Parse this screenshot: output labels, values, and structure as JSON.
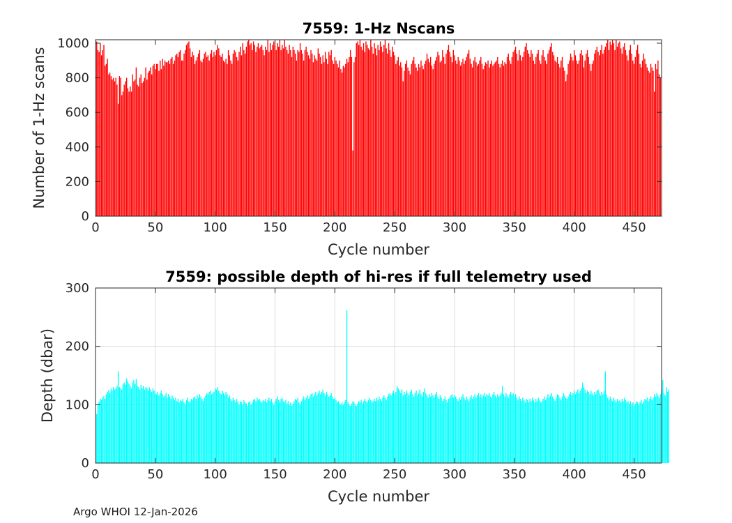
{
  "footer": "Argo WHOI 12-Jan-2026",
  "chart_data": [
    {
      "type": "bar",
      "title": "7559: 1-Hz Nscans",
      "xlabel": "Cycle number",
      "ylabel": "Number of 1-Hz scans",
      "xlim": [
        0,
        473
      ],
      "ylim": [
        0,
        1020
      ],
      "xticks": [
        0,
        50,
        100,
        150,
        200,
        250,
        300,
        350,
        400,
        450
      ],
      "yticks": [
        0,
        200,
        400,
        600,
        800,
        1000
      ],
      "grid": false,
      "color": "#ff0000",
      "series": [
        {
          "x_range": [
            1,
            473
          ],
          "values": [
            1010,
            960,
            950,
            1000,
            930,
            960,
            990,
            870,
            880,
            910,
            820,
            830,
            810,
            790,
            800,
            780,
            800,
            760,
            650,
            810,
            800,
            700,
            720,
            760,
            780,
            800,
            740,
            720,
            750,
            720,
            820,
            780,
            790,
            860,
            760,
            750,
            800,
            820,
            770,
            780,
            800,
            860,
            790,
            830,
            840,
            860,
            820,
            870,
            880,
            850,
            880,
            880,
            840,
            900,
            850,
            910,
            870,
            900,
            890,
            890,
            900,
            880,
            910,
            920,
            880,
            900,
            930,
            940,
            920,
            950,
            960,
            900,
            900,
            940,
            960,
            990,
            1000,
            1010,
            970,
            920,
            950,
            930,
            880,
            900,
            920,
            940,
            960,
            900,
            890,
            910,
            940,
            950,
            920,
            930,
            900,
            940,
            960,
            920,
            950,
            930,
            960,
            990,
            970,
            930,
            920,
            940,
            900,
            890,
            910,
            880,
            960,
            930,
            900,
            880,
            940,
            960,
            950,
            920,
            900,
            950,
            980,
            930,
            1000,
            960,
            940,
            980,
            1010,
            1020,
            990,
            1000,
            960,
            1010,
            990,
            950,
            980,
            1000,
            970,
            980,
            990,
            960,
            930,
            980,
            960,
            1020,
            950,
            1000,
            960,
            990,
            1010,
            990,
            960,
            1000,
            980,
            1020,
            960,
            990,
            970,
            1020,
            980,
            960,
            940,
            990,
            960,
            920,
            980,
            960,
            940,
            900,
            960,
            950,
            1000,
            960,
            940,
            900,
            960,
            980,
            950,
            930,
            910,
            960,
            940,
            890,
            930,
            910,
            900,
            970,
            940,
            920,
            880,
            930,
            890,
            950,
            910,
            880,
            950,
            930,
            960,
            900,
            880,
            920,
            900,
            880,
            860,
            900,
            850,
            830,
            870,
            860,
            880,
            910,
            890,
            920,
            960,
            920,
            380,
            890,
            920,
            1000,
            1010,
            990,
            1020,
            980,
            960,
            1000,
            950,
            1010,
            990,
            970,
            960,
            1020,
            980,
            940,
            1000,
            970,
            930,
            990,
            960,
            1010,
            980,
            950,
            990,
            1020,
            970,
            940,
            1000,
            960,
            920,
            980,
            950,
            930,
            880,
            900,
            920,
            870,
            890,
            860,
            780,
            840,
            880,
            900,
            860,
            840,
            820,
            880,
            900,
            920,
            880,
            860,
            840,
            880,
            860,
            900,
            870,
            850,
            880,
            900,
            940,
            910,
            890,
            920,
            870,
            850,
            880,
            900,
            920,
            950,
            930,
            890,
            900,
            960,
            920,
            880,
            940,
            960,
            990,
            950,
            920,
            890,
            960,
            930,
            900,
            880,
            920,
            900,
            870,
            890,
            910,
            880,
            900,
            920,
            940,
            960,
            910,
            880,
            860,
            900,
            920,
            890,
            870,
            880,
            900,
            920,
            880,
            850,
            870,
            890,
            880,
            900,
            860,
            880,
            900,
            870,
            880,
            890,
            900,
            920,
            880,
            860,
            880,
            900,
            870,
            890,
            880,
            920,
            940,
            900,
            880,
            920,
            950,
            960,
            980,
            940,
            900,
            960,
            930,
            900,
            920,
            950,
            980,
            1000,
            960,
            940,
            920,
            960,
            940,
            900,
            880,
            920,
            940,
            960,
            900,
            880,
            930,
            960,
            920,
            900,
            880,
            940,
            960,
            980,
            1000,
            950,
            930,
            900,
            890,
            920,
            880,
            860,
            900,
            920,
            860,
            840,
            780,
            820,
            880,
            900,
            940,
            920,
            900,
            960,
            930,
            900,
            880,
            900,
            940,
            960,
            930,
            860,
            900,
            940,
            960,
            920,
            880,
            840,
            880,
            900,
            940,
            960,
            980,
            950,
            930,
            960,
            990,
            940,
            960,
            980,
            1000,
            1020,
            960,
            1010,
            990,
            1020,
            1000,
            960,
            1020,
            980,
            1000,
            1010,
            970,
            940,
            980,
            1000,
            960,
            930,
            900,
            960,
            990,
            940,
            900,
            880,
            920,
            960,
            990,
            940,
            880,
            860,
            900,
            940,
            910,
            880,
            860,
            840,
            830,
            880,
            860,
            840,
            720,
            880,
            850,
            900,
            820,
            800
          ]
        }
      ]
    },
    {
      "type": "bar",
      "title": "7559: possible depth of hi-res if full telemetry used",
      "xlabel": "Cycle number",
      "ylabel": "Depth (dbar)",
      "xlim": [
        0,
        473
      ],
      "ylim": [
        0,
        300
      ],
      "xticks": [
        0,
        50,
        100,
        150,
        200,
        250,
        300,
        350,
        400,
        450
      ],
      "yticks": [
        0,
        100,
        200,
        300
      ],
      "grid": true,
      "color": "#00ffff",
      "series": [
        {
          "x_range": [
            1,
            473
          ],
          "values": [
            84,
            100,
            105,
            110,
            108,
            112,
            115,
            110,
            118,
            122,
            125,
            120,
            128,
            124,
            130,
            126,
            128,
            132,
            157,
            130,
            128,
            126,
            135,
            138,
            134,
            145,
            140,
            136,
            132,
            128,
            138,
            142,
            136,
            144,
            132,
            130,
            126,
            134,
            128,
            132,
            126,
            130,
            128,
            124,
            130,
            126,
            122,
            128,
            124,
            120,
            118,
            122,
            116,
            120,
            124,
            118,
            114,
            116,
            120,
            112,
            118,
            114,
            110,
            116,
            112,
            108,
            112,
            106,
            110,
            104,
            108,
            106,
            110,
            104,
            100,
            108,
            112,
            106,
            104,
            110,
            108,
            112,
            114,
            110,
            116,
            112,
            118,
            114,
            110,
            106,
            112,
            116,
            120,
            118,
            122,
            124,
            118,
            120,
            122,
            128,
            126,
            130,
            124,
            120,
            118,
            124,
            120,
            116,
            122,
            118,
            112,
            116,
            110,
            106,
            112,
            108,
            104,
            110,
            106,
            100,
            106,
            104,
            100,
            108,
            104,
            102,
            98,
            104,
            106,
            100,
            104,
            108,
            110,
            106,
            112,
            108,
            110,
            106,
            104,
            108,
            106,
            110,
            104,
            108,
            112,
            106,
            110,
            104,
            100,
            106,
            110,
            114,
            108,
            104,
            110,
            112,
            106,
            104,
            108,
            102,
            106,
            100,
            104,
            98,
            102,
            106,
            110,
            108,
            112,
            104,
            100,
            106,
            110,
            114,
            108,
            112,
            116,
            110,
            114,
            118,
            120,
            114,
            118,
            122,
            116,
            120,
            124,
            118,
            122,
            126,
            120,
            116,
            122,
            118,
            114,
            116,
            120,
            114,
            110,
            112,
            108,
            104,
            106,
            102,
            100,
            104,
            100,
            104,
            108,
            262,
            104,
            100,
            98,
            102,
            106,
            104,
            100,
            98,
            102,
            106,
            104,
            108,
            102,
            106,
            110,
            106,
            104,
            108,
            112,
            108,
            104,
            106,
            110,
            106,
            112,
            108,
            114,
            110,
            106,
            112,
            116,
            112,
            108,
            114,
            118,
            120,
            116,
            120,
            124,
            118,
            122,
            132,
            128,
            124,
            120,
            126,
            116,
            122,
            118,
            124,
            120,
            116,
            122,
            126,
            118,
            114,
            120,
            124,
            116,
            120,
            126,
            118,
            114,
            122,
            128,
            120,
            116,
            112,
            118,
            114,
            120,
            116,
            112,
            118,
            122,
            114,
            110,
            116,
            112,
            106,
            110,
            114,
            108,
            104,
            110,
            112,
            116,
            118,
            112,
            116,
            114,
            110,
            106,
            112,
            108,
            114,
            118,
            112,
            108,
            114,
            110,
            106,
            112,
            116,
            110,
            114,
            118,
            112,
            116,
            120,
            114,
            118,
            112,
            116,
            120,
            114,
            118,
            116,
            120,
            114,
            112,
            118,
            122,
            116,
            112,
            118,
            114,
            116,
            120,
            132,
            118,
            114,
            120,
            116,
            112,
            118,
            122,
            116,
            120,
            114,
            118,
            112,
            108,
            114,
            110,
            106,
            112,
            108,
            104,
            110,
            108,
            104,
            110,
            106,
            112,
            108,
            104,
            110,
            106,
            112,
            108,
            104,
            106,
            110,
            114,
            108,
            112,
            118,
            112,
            116,
            120,
            114,
            110,
            106,
            112,
            118,
            116,
            112,
            108,
            114,
            120,
            116,
            112,
            110,
            114,
            118,
            122,
            116,
            120,
            124,
            118,
            122,
            126,
            120,
            124,
            128,
            138,
            130,
            126,
            120,
            124,
            122,
            118,
            124,
            120,
            116,
            122,
            118,
            124,
            126,
            120,
            116,
            122,
            118,
            124,
            157,
            118,
            112,
            108,
            114,
            110,
            106,
            112,
            108,
            104,
            110,
            106,
            108,
            104,
            110,
            106,
            112,
            108,
            104,
            106,
            102,
            106,
            100,
            104,
            98,
            102,
            106,
            104,
            100,
            104,
            108,
            102,
            106,
            110,
            108,
            112,
            106,
            110,
            114,
            108,
            112,
            118,
            114,
            120,
            116,
            112,
            118,
            124,
            142,
            120,
            116,
            130,
            122,
            126
          ]
        }
      ]
    }
  ]
}
